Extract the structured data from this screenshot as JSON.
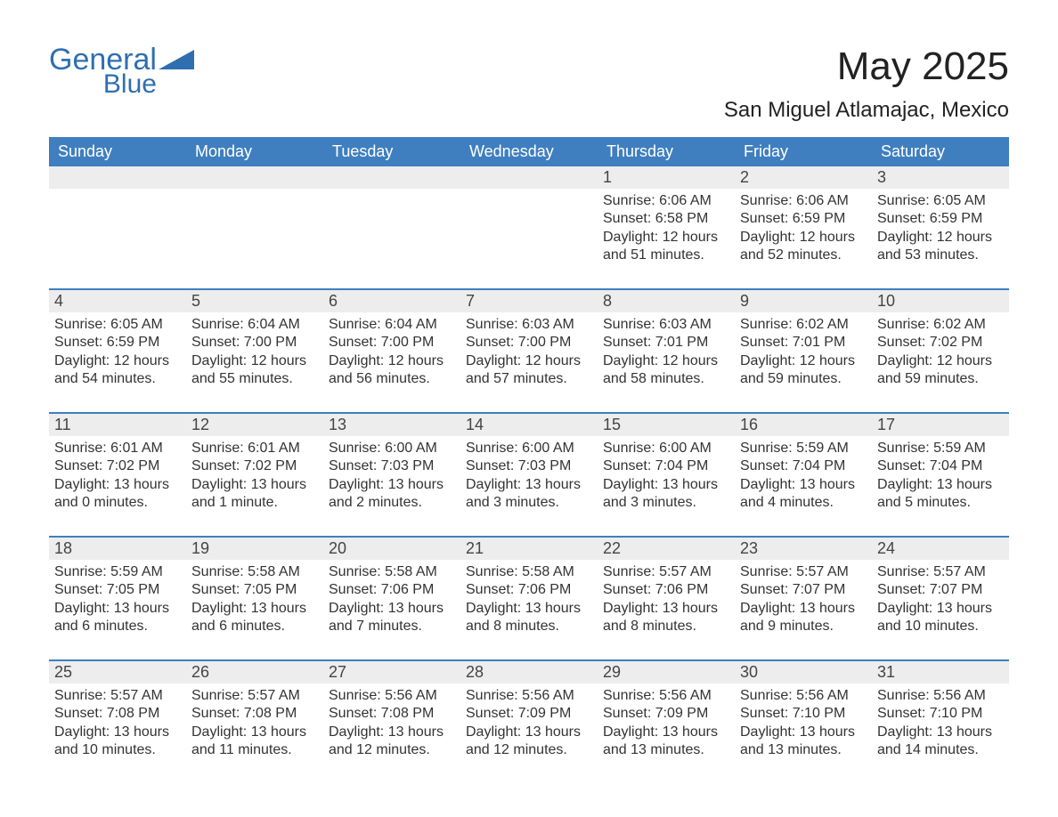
{
  "brand": {
    "line1": "General",
    "line2": "Blue"
  },
  "title": "May 2025",
  "location": "San Miguel Atlamajac, Mexico",
  "colors": {
    "header_bg": "#3f7fbf",
    "header_text": "#ffffff",
    "daynum_bg": "#ededed",
    "body_text": "#333333",
    "accent": "#2f6fb0",
    "row_border": "#3f7fbf"
  },
  "day_headers": [
    "Sunday",
    "Monday",
    "Tuesday",
    "Wednesday",
    "Thursday",
    "Friday",
    "Saturday"
  ],
  "weeks": [
    [
      {
        "blank": true
      },
      {
        "blank": true
      },
      {
        "blank": true
      },
      {
        "blank": true
      },
      {
        "n": "1",
        "sr": "6:06 AM",
        "ss": "6:58 PM",
        "dl": "12 hours and 51 minutes."
      },
      {
        "n": "2",
        "sr": "6:06 AM",
        "ss": "6:59 PM",
        "dl": "12 hours and 52 minutes."
      },
      {
        "n": "3",
        "sr": "6:05 AM",
        "ss": "6:59 PM",
        "dl": "12 hours and 53 minutes."
      }
    ],
    [
      {
        "n": "4",
        "sr": "6:05 AM",
        "ss": "6:59 PM",
        "dl": "12 hours and 54 minutes."
      },
      {
        "n": "5",
        "sr": "6:04 AM",
        "ss": "7:00 PM",
        "dl": "12 hours and 55 minutes."
      },
      {
        "n": "6",
        "sr": "6:04 AM",
        "ss": "7:00 PM",
        "dl": "12 hours and 56 minutes."
      },
      {
        "n": "7",
        "sr": "6:03 AM",
        "ss": "7:00 PM",
        "dl": "12 hours and 57 minutes."
      },
      {
        "n": "8",
        "sr": "6:03 AM",
        "ss": "7:01 PM",
        "dl": "12 hours and 58 minutes."
      },
      {
        "n": "9",
        "sr": "6:02 AM",
        "ss": "7:01 PM",
        "dl": "12 hours and 59 minutes."
      },
      {
        "n": "10",
        "sr": "6:02 AM",
        "ss": "7:02 PM",
        "dl": "12 hours and 59 minutes."
      }
    ],
    [
      {
        "n": "11",
        "sr": "6:01 AM",
        "ss": "7:02 PM",
        "dl": "13 hours and 0 minutes."
      },
      {
        "n": "12",
        "sr": "6:01 AM",
        "ss": "7:02 PM",
        "dl": "13 hours and 1 minute."
      },
      {
        "n": "13",
        "sr": "6:00 AM",
        "ss": "7:03 PM",
        "dl": "13 hours and 2 minutes."
      },
      {
        "n": "14",
        "sr": "6:00 AM",
        "ss": "7:03 PM",
        "dl": "13 hours and 3 minutes."
      },
      {
        "n": "15",
        "sr": "6:00 AM",
        "ss": "7:04 PM",
        "dl": "13 hours and 3 minutes."
      },
      {
        "n": "16",
        "sr": "5:59 AM",
        "ss": "7:04 PM",
        "dl": "13 hours and 4 minutes."
      },
      {
        "n": "17",
        "sr": "5:59 AM",
        "ss": "7:04 PM",
        "dl": "13 hours and 5 minutes."
      }
    ],
    [
      {
        "n": "18",
        "sr": "5:59 AM",
        "ss": "7:05 PM",
        "dl": "13 hours and 6 minutes."
      },
      {
        "n": "19",
        "sr": "5:58 AM",
        "ss": "7:05 PM",
        "dl": "13 hours and 6 minutes."
      },
      {
        "n": "20",
        "sr": "5:58 AM",
        "ss": "7:06 PM",
        "dl": "13 hours and 7 minutes."
      },
      {
        "n": "21",
        "sr": "5:58 AM",
        "ss": "7:06 PM",
        "dl": "13 hours and 8 minutes."
      },
      {
        "n": "22",
        "sr": "5:57 AM",
        "ss": "7:06 PM",
        "dl": "13 hours and 8 minutes."
      },
      {
        "n": "23",
        "sr": "5:57 AM",
        "ss": "7:07 PM",
        "dl": "13 hours and 9 minutes."
      },
      {
        "n": "24",
        "sr": "5:57 AM",
        "ss": "7:07 PM",
        "dl": "13 hours and 10 minutes."
      }
    ],
    [
      {
        "n": "25",
        "sr": "5:57 AM",
        "ss": "7:08 PM",
        "dl": "13 hours and 10 minutes."
      },
      {
        "n": "26",
        "sr": "5:57 AM",
        "ss": "7:08 PM",
        "dl": "13 hours and 11 minutes."
      },
      {
        "n": "27",
        "sr": "5:56 AM",
        "ss": "7:08 PM",
        "dl": "13 hours and 12 minutes."
      },
      {
        "n": "28",
        "sr": "5:56 AM",
        "ss": "7:09 PM",
        "dl": "13 hours and 12 minutes."
      },
      {
        "n": "29",
        "sr": "5:56 AM",
        "ss": "7:09 PM",
        "dl": "13 hours and 13 minutes."
      },
      {
        "n": "30",
        "sr": "5:56 AM",
        "ss": "7:10 PM",
        "dl": "13 hours and 13 minutes."
      },
      {
        "n": "31",
        "sr": "5:56 AM",
        "ss": "7:10 PM",
        "dl": "13 hours and 14 minutes."
      }
    ]
  ],
  "labels": {
    "sunrise": "Sunrise: ",
    "sunset": "Sunset: ",
    "daylight": "Daylight: "
  }
}
